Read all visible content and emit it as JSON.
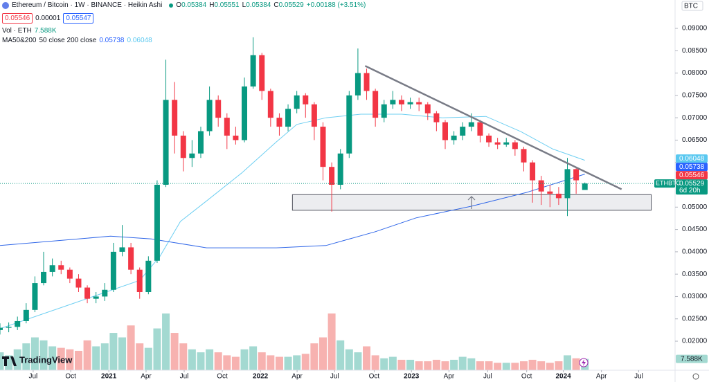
{
  "chart_data": {
    "type": "candlestick",
    "title": "Ethereum / Bitcoin · 1W · BINANCE · Heikin Ashi",
    "ohlc_labels": [
      "O",
      "H",
      "L",
      "C"
    ],
    "change": "+0.00188 (+3.51%)",
    "bid": 0.05546,
    "spread": 1e-05,
    "ask": 0.05547,
    "volume_title": "Vol · ETH",
    "volume_last_label": "7.588K",
    "ma_title": "MA50&200",
    "ma_params": "50 close 200 close",
    "symbol_tag": "ETHBTC",
    "countdown": "6d 20h",
    "currency": "BTC",
    "brand": "TradingView",
    "up_color": "#089981",
    "down_color": "#f23645",
    "volume_up_color": "#a3d9d1",
    "volume_down_color": "#f7b2b0",
    "x": [
      0,
      3,
      6,
      9,
      12,
      15,
      18,
      21,
      24,
      27,
      30,
      33,
      36,
      39,
      42,
      45,
      48,
      51,
      54,
      57,
      60,
      63,
      66,
      69,
      72,
      75,
      78,
      81,
      84,
      87,
      90,
      93,
      96,
      99,
      102,
      105,
      108,
      111,
      114,
      117,
      120,
      123,
      126,
      129,
      132,
      135,
      138,
      141,
      144,
      147,
      150,
      153,
      156,
      159,
      162,
      165,
      168,
      171,
      174,
      177,
      180,
      183,
      186,
      189,
      192,
      195,
      198,
      201
    ],
    "open": [
      0.0225,
      0.023,
      0.0232,
      0.0245,
      0.027,
      0.033,
      0.0355,
      0.037,
      0.036,
      0.034,
      0.032,
      0.0295,
      0.03,
      0.0315,
      0.04,
      0.041,
      0.036,
      0.031,
      0.038,
      0.055,
      0.074,
      0.066,
      0.061,
      0.062,
      0.067,
      0.074,
      0.07,
      0.066,
      0.065,
      0.077,
      0.084,
      0.076,
      0.07,
      0.068,
      0.072,
      0.075,
      0.073,
      0.068,
      0.059,
      0.055,
      0.062,
      0.075,
      0.08,
      0.076,
      0.07,
      0.073,
      0.074,
      0.073,
      0.0735,
      0.073,
      0.071,
      0.069,
      0.065,
      0.066,
      0.068,
      0.069,
      0.066,
      0.0645,
      0.064,
      0.0645,
      0.063,
      0.06,
      0.056,
      0.0535,
      0.053,
      0.052,
      0.0585,
      0.05384
    ],
    "high": [
      0.024,
      0.0242,
      0.0255,
      0.0285,
      0.0345,
      0.04,
      0.0385,
      0.038,
      0.0365,
      0.035,
      0.0325,
      0.031,
      0.033,
      0.042,
      0.046,
      0.042,
      0.0365,
      0.039,
      0.056,
      0.083,
      0.078,
      0.067,
      0.065,
      0.068,
      0.077,
      0.075,
      0.071,
      0.068,
      0.079,
      0.088,
      0.0845,
      0.0765,
      0.071,
      0.073,
      0.076,
      0.0755,
      0.0735,
      0.069,
      0.06,
      0.063,
      0.076,
      0.0855,
      0.081,
      0.0765,
      0.074,
      0.076,
      0.075,
      0.0745,
      0.0745,
      0.0735,
      0.0715,
      0.0695,
      0.067,
      0.069,
      0.071,
      0.0695,
      0.0665,
      0.0655,
      0.0655,
      0.065,
      0.0635,
      0.0605,
      0.057,
      0.055,
      0.0545,
      0.061,
      0.059,
      0.05551
    ],
    "low": [
      0.0215,
      0.022,
      0.0225,
      0.024,
      0.0265,
      0.0325,
      0.0345,
      0.035,
      0.033,
      0.031,
      0.0285,
      0.0285,
      0.029,
      0.031,
      0.039,
      0.035,
      0.0295,
      0.0305,
      0.0375,
      0.0545,
      0.062,
      0.058,
      0.059,
      0.061,
      0.066,
      0.068,
      0.063,
      0.064,
      0.0645,
      0.0765,
      0.074,
      0.068,
      0.066,
      0.067,
      0.071,
      0.07,
      0.065,
      0.056,
      0.049,
      0.054,
      0.061,
      0.074,
      0.074,
      0.068,
      0.069,
      0.072,
      0.0715,
      0.072,
      0.0715,
      0.0695,
      0.067,
      0.063,
      0.064,
      0.065,
      0.067,
      0.0645,
      0.0635,
      0.063,
      0.0635,
      0.0615,
      0.058,
      0.051,
      0.0505,
      0.05,
      0.0505,
      0.048,
      0.053,
      0.05384
    ],
    "close": [
      0.023,
      0.0232,
      0.0245,
      0.027,
      0.033,
      0.0355,
      0.037,
      0.036,
      0.034,
      0.032,
      0.0295,
      0.03,
      0.0315,
      0.04,
      0.041,
      0.036,
      0.031,
      0.038,
      0.055,
      0.074,
      0.066,
      0.061,
      0.062,
      0.067,
      0.074,
      0.07,
      0.066,
      0.065,
      0.077,
      0.084,
      0.076,
      0.07,
      0.068,
      0.072,
      0.075,
      0.073,
      0.068,
      0.059,
      0.055,
      0.062,
      0.075,
      0.08,
      0.076,
      0.07,
      0.073,
      0.074,
      0.073,
      0.0735,
      0.073,
      0.071,
      0.069,
      0.065,
      0.066,
      0.068,
      0.069,
      0.066,
      0.0645,
      0.064,
      0.0645,
      0.063,
      0.06,
      0.056,
      0.0535,
      0.053,
      0.052,
      0.0585,
      0.056,
      0.05529
    ],
    "volume": [
      12,
      10,
      14,
      18,
      22,
      20,
      16,
      15,
      14,
      13,
      20,
      16,
      18,
      25,
      22,
      30,
      18,
      15,
      28,
      38,
      25,
      18,
      14,
      12,
      14,
      12,
      10,
      9,
      14,
      16,
      12,
      10,
      9,
      9,
      10,
      11,
      18,
      22,
      38,
      20,
      14,
      12,
      16,
      10,
      8,
      9,
      7,
      7,
      6,
      6,
      7,
      6,
      7,
      9,
      8,
      6,
      6,
      5,
      5,
      5,
      6,
      7,
      6,
      5,
      6,
      10,
      8,
      7.588
    ],
    "series": [
      {
        "name": "MA50",
        "color": "#6ecff2",
        "tag_color": "#59c8f0",
        "x": [
          0,
          24,
          48,
          55,
          62,
          71,
          83,
          95,
          102,
          112,
          124,
          138,
          152,
          167,
          179,
          190,
          201
        ],
        "values": [
          0.0228,
          0.0282,
          0.0336,
          0.039,
          0.0468,
          0.0514,
          0.0576,
          0.0646,
          0.0685,
          0.07,
          0.0708,
          0.0708,
          0.07,
          0.0703,
          0.0669,
          0.063,
          0.06048
        ]
      },
      {
        "name": "MA200",
        "color": "#2f66e8",
        "tag_color": "#2962ff",
        "x": [
          0,
          38,
          52,
          71,
          95,
          112,
          129,
          143,
          162,
          181,
          201
        ],
        "values": [
          0.0414,
          0.0435,
          0.0429,
          0.0409,
          0.0409,
          0.0414,
          0.0445,
          0.0476,
          0.0502,
          0.0533,
          0.05738
        ]
      }
    ],
    "trendline": {
      "x": [
        125.5,
        213.6
      ],
      "y": [
        0.0816,
        0.054
      ]
    },
    "zone": {
      "x": [
        100.5,
        223.8
      ],
      "y": [
        0.0493,
        0.0528
      ]
    },
    "xlim": [
      0,
      232
    ],
    "ylim": [
      0.0135,
      0.09635
    ],
    "grid": false,
    "xticks": [
      {
        "value": 11.4,
        "label": "Jul"
      },
      {
        "value": 24.3,
        "label": "Oct"
      },
      {
        "value": 37.4,
        "label": "2021"
      },
      {
        "value": 50.2,
        "label": "Apr"
      },
      {
        "value": 63.3,
        "label": "Jul"
      },
      {
        "value": 76.4,
        "label": "Oct"
      },
      {
        "value": 89.5,
        "label": "2022"
      },
      {
        "value": 102.1,
        "label": "Apr"
      },
      {
        "value": 115,
        "label": "Jul"
      },
      {
        "value": 128.6,
        "label": "Oct"
      },
      {
        "value": 141.4,
        "label": "2023"
      },
      {
        "value": 154.3,
        "label": "Apr"
      },
      {
        "value": 167.6,
        "label": "Jul"
      },
      {
        "value": 181,
        "label": "Oct"
      },
      {
        "value": 193.6,
        "label": "2024"
      },
      {
        "value": 206.7,
        "label": "Apr"
      },
      {
        "value": 219.5,
        "label": "Jul"
      }
    ],
    "yticks": [
      {
        "value": 0.02,
        "label": "0.02000"
      },
      {
        "value": 0.025,
        "label": "0.02500"
      },
      {
        "value": 0.03,
        "label": "0.03000"
      },
      {
        "value": 0.035,
        "label": "0.03500"
      },
      {
        "value": 0.04,
        "label": "0.04000"
      },
      {
        "value": 0.045,
        "label": "0.04500"
      },
      {
        "value": 0.05,
        "label": "0.05000"
      },
      {
        "value": 0.055,
        "label": "0.05500"
      },
      {
        "value": 0.06,
        "label": "0.06000"
      },
      {
        "value": 0.065,
        "label": "0.06500"
      },
      {
        "value": 0.07,
        "label": "0.07000"
      },
      {
        "value": 0.075,
        "label": "0.07500"
      },
      {
        "value": 0.08,
        "label": "0.08000"
      },
      {
        "value": 0.085,
        "label": "0.08500"
      },
      {
        "value": 0.09,
        "label": "0.09000"
      }
    ]
  }
}
